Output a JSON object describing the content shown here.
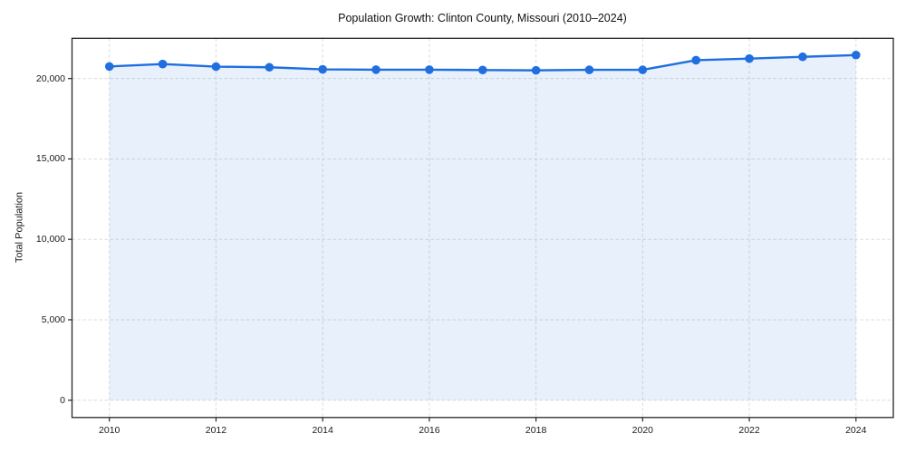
{
  "chart_data": {
    "type": "line",
    "title": "Population Growth: Clinton County, Missouri (2010–2024)",
    "xlabel": "",
    "ylabel": "Total Population",
    "x": [
      2010,
      2011,
      2012,
      2013,
      2014,
      2015,
      2016,
      2017,
      2018,
      2019,
      2020,
      2021,
      2022,
      2023,
      2024
    ],
    "series": [
      {
        "name": "Total Population",
        "values": [
          20750,
          20900,
          20740,
          20700,
          20570,
          20550,
          20550,
          20530,
          20510,
          20540,
          20540,
          21140,
          21240,
          21350,
          21460
        ]
      }
    ],
    "xticks": {
      "values": [
        2010,
        2012,
        2014,
        2016,
        2018,
        2020,
        2022,
        2024
      ],
      "labels": [
        "2010",
        "2012",
        "2014",
        "2016",
        "2018",
        "2020",
        "2022",
        "2024"
      ]
    },
    "yticks": {
      "values": [
        0,
        5000,
        10000,
        15000,
        20000
      ],
      "labels": [
        "0",
        "5,000",
        "10,000",
        "15,000",
        "20,000"
      ]
    },
    "xlim": [
      2009.3,
      2024.7
    ],
    "ylim": [
      -1075,
      22500
    ],
    "grid": true,
    "grid_style": "dashed",
    "legend": false,
    "area_fill": true,
    "fill_baseline": 0,
    "marker": "circle",
    "colors": {
      "line": "#1f6fe0",
      "fill": "#e8f1fc",
      "grid": "#dcdcdc",
      "frame": "#262626",
      "text": "#1a1a1a"
    },
    "fill_opacity": 0.1
  }
}
